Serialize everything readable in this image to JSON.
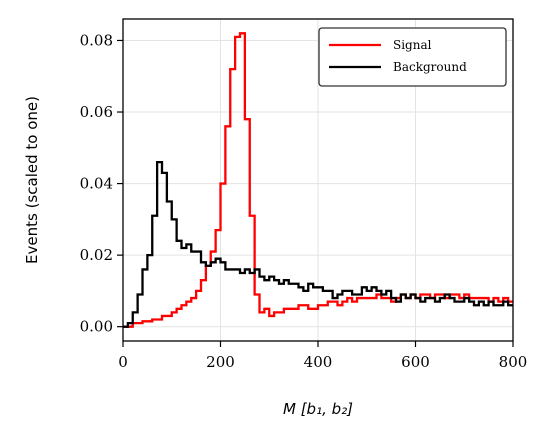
{
  "chart_data": {
    "type": "line",
    "style": "step-histogram",
    "xlabel": "M [b₁, b₂]",
    "ylabel": "Events (scaled to one)",
    "xlim": [
      0,
      800
    ],
    "ylim": [
      -0.004,
      0.086
    ],
    "xticks": [
      0,
      200,
      400,
      600,
      800
    ],
    "xtick_labels": [
      "0",
      "200",
      "400",
      "600",
      "800"
    ],
    "yticks": [
      0.0,
      0.02,
      0.04,
      0.06,
      0.08
    ],
    "ytick_labels": [
      "0.00",
      "0.02",
      "0.04",
      "0.06",
      "0.08"
    ],
    "grid": true,
    "legend_position": "top-right",
    "bin_edges": [
      0,
      10,
      20,
      30,
      40,
      50,
      60,
      70,
      80,
      90,
      100,
      110,
      120,
      130,
      140,
      150,
      160,
      170,
      180,
      190,
      200,
      210,
      220,
      230,
      240,
      250,
      260,
      270,
      280,
      290,
      300,
      310,
      320,
      330,
      340,
      350,
      360,
      370,
      380,
      390,
      400,
      410,
      420,
      430,
      440,
      450,
      460,
      470,
      480,
      490,
      500,
      510,
      520,
      530,
      540,
      550,
      560,
      570,
      580,
      590,
      600,
      610,
      620,
      630,
      640,
      650,
      660,
      670,
      680,
      690,
      700,
      710,
      720,
      730,
      740,
      750,
      760,
      770,
      780,
      790,
      800
    ],
    "series": [
      {
        "name": "Signal",
        "color": "#ff0000",
        "values": [
          0.0,
          0.0,
          0.001,
          0.001,
          0.0015,
          0.0015,
          0.002,
          0.002,
          0.003,
          0.003,
          0.004,
          0.005,
          0.006,
          0.007,
          0.008,
          0.01,
          0.013,
          0.017,
          0.021,
          0.027,
          0.04,
          0.056,
          0.072,
          0.081,
          0.082,
          0.058,
          0.031,
          0.009,
          0.004,
          0.005,
          0.003,
          0.004,
          0.004,
          0.005,
          0.005,
          0.005,
          0.006,
          0.006,
          0.005,
          0.005,
          0.006,
          0.006,
          0.007,
          0.007,
          0.006,
          0.007,
          0.008,
          0.007,
          0.008,
          0.008,
          0.008,
          0.008,
          0.009,
          0.008,
          0.008,
          0.007,
          0.008,
          0.009,
          0.008,
          0.009,
          0.008,
          0.009,
          0.009,
          0.008,
          0.009,
          0.009,
          0.008,
          0.009,
          0.009,
          0.008,
          0.009,
          0.008,
          0.008,
          0.008,
          0.008,
          0.007,
          0.008,
          0.007,
          0.008,
          0.007
        ]
      },
      {
        "name": "Background",
        "color": "#000000",
        "values": [
          0.0,
          0.001,
          0.004,
          0.009,
          0.016,
          0.02,
          0.031,
          0.046,
          0.043,
          0.035,
          0.03,
          0.024,
          0.022,
          0.023,
          0.021,
          0.021,
          0.018,
          0.017,
          0.018,
          0.019,
          0.018,
          0.016,
          0.016,
          0.016,
          0.015,
          0.016,
          0.015,
          0.016,
          0.014,
          0.013,
          0.014,
          0.013,
          0.012,
          0.013,
          0.012,
          0.012,
          0.011,
          0.01,
          0.012,
          0.011,
          0.011,
          0.01,
          0.01,
          0.008,
          0.009,
          0.01,
          0.01,
          0.009,
          0.009,
          0.011,
          0.01,
          0.011,
          0.01,
          0.009,
          0.01,
          0.008,
          0.007,
          0.009,
          0.008,
          0.009,
          0.008,
          0.007,
          0.008,
          0.008,
          0.007,
          0.008,
          0.009,
          0.008,
          0.007,
          0.007,
          0.008,
          0.007,
          0.006,
          0.007,
          0.006,
          0.007,
          0.006,
          0.006,
          0.007,
          0.006
        ]
      }
    ]
  }
}
